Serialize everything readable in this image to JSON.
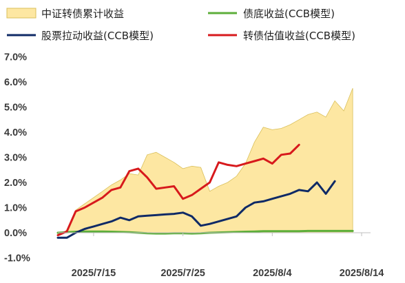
{
  "chart_data": {
    "type": "area",
    "title": "",
    "xlabel": "",
    "ylabel": "",
    "ylim": [
      -1.0,
      7.0
    ],
    "y_tick_labels": [
      "-1.0%",
      "0.0%",
      "1.0%",
      "2.0%",
      "3.0%",
      "4.0%",
      "5.0%",
      "6.0%",
      "7.0%"
    ],
    "y_tick_values": [
      -1,
      0,
      1,
      2,
      3,
      4,
      5,
      6,
      7
    ],
    "x_tick_labels": [
      "2025/7/15",
      "2025/7/25",
      "2025/8/4",
      "2025/8/14"
    ],
    "x_tick_dates": [
      "2025-07-15",
      "2025-07-25",
      "2025-08-04",
      "2025-08-14"
    ],
    "grid": false,
    "legend_position": "top",
    "dates": [
      "2025-07-11",
      "2025-07-12",
      "2025-07-13",
      "2025-07-14",
      "2025-07-15",
      "2025-07-16",
      "2025-07-17",
      "2025-07-18",
      "2025-07-19",
      "2025-07-20",
      "2025-07-21",
      "2025-07-22",
      "2025-07-23",
      "2025-07-24",
      "2025-07-25",
      "2025-07-26",
      "2025-07-27",
      "2025-07-28",
      "2025-07-29",
      "2025-07-30",
      "2025-07-31",
      "2025-08-01",
      "2025-08-02",
      "2025-08-03",
      "2025-08-04",
      "2025-08-05",
      "2025-08-06",
      "2025-08-07",
      "2025-08-08",
      "2025-08-09",
      "2025-08-10",
      "2025-08-11",
      "2025-08-12",
      "2025-08-13",
      "2025-08-14",
      "2025-08-15"
    ],
    "series": [
      {
        "name": "中证转债累计收益",
        "kind": "area",
        "color": "#fde7a2",
        "edge_color": "#d9bf5a",
        "values": [
          -0.1,
          0.1,
          0.9,
          1.15,
          1.4,
          1.65,
          1.9,
          2.1,
          2.35,
          2.3,
          3.1,
          3.2,
          3.0,
          2.8,
          2.55,
          2.65,
          2.6,
          1.65,
          1.85,
          2.0,
          2.25,
          2.75,
          3.6,
          4.2,
          4.1,
          4.15,
          4.3,
          4.5,
          4.7,
          4.8,
          4.6,
          5.25,
          4.85,
          5.75,
          null,
          null
        ]
      },
      {
        "name": "债底收益(CCB模型)",
        "kind": "line",
        "color": "#5cae3a",
        "values": [
          0.0,
          0.02,
          0.04,
          0.05,
          0.05,
          0.05,
          0.04,
          0.03,
          0.02,
          0.0,
          -0.02,
          -0.03,
          -0.03,
          -0.02,
          -0.02,
          -0.03,
          -0.02,
          0.0,
          0.01,
          0.02,
          0.03,
          0.04,
          0.05,
          0.06,
          0.06,
          0.06,
          0.06,
          0.06,
          0.07,
          0.07,
          0.07,
          0.07,
          0.07,
          0.07,
          null,
          null
        ]
      },
      {
        "name": "股票拉动收益(CCB模型)",
        "kind": "line",
        "color": "#0f2a66",
        "values": [
          -0.2,
          -0.2,
          0.0,
          0.15,
          0.25,
          0.35,
          0.45,
          0.6,
          0.5,
          0.65,
          0.68,
          0.7,
          0.73,
          0.75,
          0.8,
          0.65,
          0.28,
          0.35,
          0.45,
          0.55,
          0.65,
          1.0,
          1.2,
          1.25,
          1.35,
          1.45,
          1.55,
          1.7,
          1.65,
          2.0,
          1.55,
          2.05,
          null,
          null,
          null,
          null
        ]
      },
      {
        "name": "转债估值收益(CCB模型)",
        "kind": "line",
        "color": "#d7191c",
        "values": [
          -0.1,
          0.05,
          0.85,
          1.0,
          1.2,
          1.4,
          1.7,
          1.8,
          2.45,
          2.55,
          2.2,
          1.75,
          1.8,
          1.85,
          1.35,
          1.5,
          1.75,
          2.0,
          2.8,
          2.7,
          2.65,
          2.75,
          2.85,
          2.95,
          2.75,
          3.1,
          3.15,
          3.5,
          null,
          null,
          null,
          null,
          null,
          null,
          null,
          null
        ]
      }
    ]
  }
}
